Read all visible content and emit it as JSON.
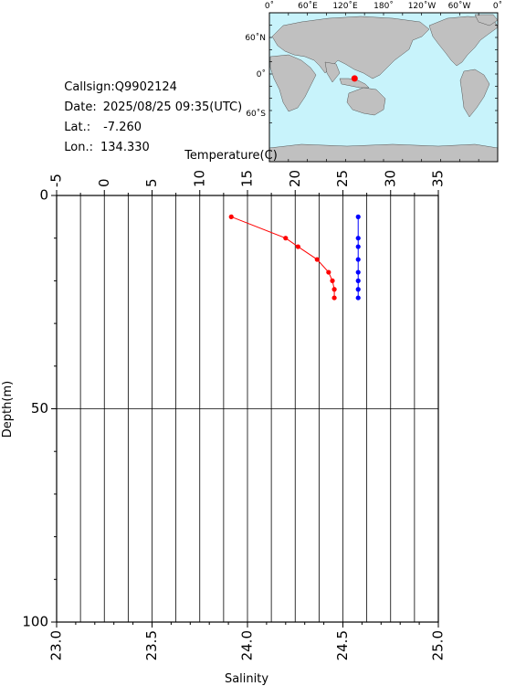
{
  "station": {
    "callsign_label": "Callsign:",
    "callsign": "Q9902124",
    "date_label": "Date:",
    "date": "2025/08/25 09:35(UTC)",
    "lat_label": "Lat.:",
    "lat": "-7.260",
    "lon_label": "Lon.:",
    "lon": "134.330"
  },
  "map": {
    "lon_ticks": [
      "0˚",
      "60˚E",
      "120˚E",
      "180˚",
      "120˚W",
      "60˚W",
      "0˚"
    ],
    "lat_ticks": [
      "60˚N",
      "0˚",
      "60˚S"
    ],
    "ocean_color": "#c8f3fb",
    "land_color": "#c0c0c0",
    "marker": {
      "lat": -7.26,
      "lon": 134.33,
      "color": "#ff0000"
    }
  },
  "chart_data": {
    "type": "scatter",
    "title": "",
    "top_axis": {
      "label": "Temperature(C)",
      "range": [
        -5,
        35
      ],
      "ticks": [
        "-5",
        "0",
        "5",
        "10",
        "15",
        "20",
        "25",
        "30",
        "35"
      ]
    },
    "bottom_axis": {
      "label": "Salinity",
      "range": [
        23.0,
        25.0
      ],
      "ticks": [
        "23.0",
        "23.5",
        "24.0",
        "24.5",
        "25.0"
      ]
    },
    "y_axis": {
      "label": "Depth(m)",
      "range": [
        0,
        100
      ],
      "inverted": true,
      "ticks": [
        "0",
        "50",
        "100"
      ]
    },
    "grid": true,
    "series": [
      {
        "quantity": "temperature",
        "axis": "top",
        "color": "#ff0000",
        "points": [
          {
            "x": 13.3,
            "y": 5
          },
          {
            "x": 19.0,
            "y": 10
          },
          {
            "x": 20.3,
            "y": 12
          },
          {
            "x": 22.3,
            "y": 15
          },
          {
            "x": 23.5,
            "y": 18
          },
          {
            "x": 23.9,
            "y": 20
          },
          {
            "x": 24.1,
            "y": 22
          },
          {
            "x": 24.1,
            "y": 24
          }
        ]
      },
      {
        "quantity": "salinity",
        "axis": "bottom",
        "color": "#0000ff",
        "points": [
          {
            "x": 24.58,
            "y": 5
          },
          {
            "x": 24.58,
            "y": 10
          },
          {
            "x": 24.58,
            "y": 12
          },
          {
            "x": 24.58,
            "y": 15
          },
          {
            "x": 24.58,
            "y": 18
          },
          {
            "x": 24.58,
            "y": 20
          },
          {
            "x": 24.58,
            "y": 22
          },
          {
            "x": 24.58,
            "y": 24
          }
        ]
      }
    ]
  }
}
